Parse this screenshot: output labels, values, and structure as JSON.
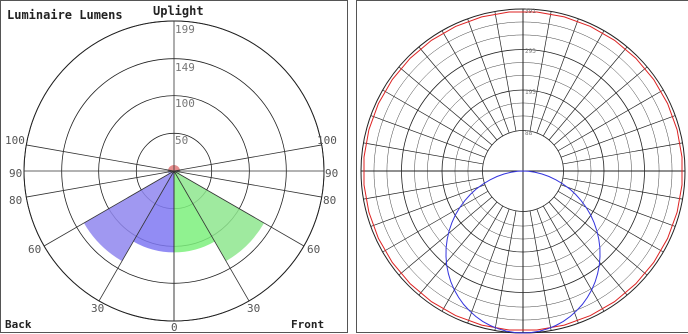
{
  "chart_data": [
    {
      "type": "polar-lumens",
      "title": "Luminaire Lumens",
      "top_label": "Uplight",
      "bottom_left_label": "Back",
      "bottom_right_label": "Front",
      "ring_values": [
        "50",
        "100",
        "149",
        "199"
      ],
      "angle_labels": {
        "left": [
          "100",
          "90",
          "80",
          "60",
          "30"
        ],
        "center_bottom": "0",
        "right": [
          "100",
          "90",
          "80",
          "60",
          "30"
        ]
      },
      "max_value": 199,
      "zones": [
        {
          "side": "back",
          "from_deg": 30,
          "to_deg": 60,
          "value": 138,
          "color": "#8f86ee"
        },
        {
          "side": "back",
          "from_deg": 0,
          "to_deg": 30,
          "value": 108,
          "color": "#7f78f2"
        },
        {
          "side": "back",
          "from_deg": 60,
          "to_deg": 80,
          "value": 8,
          "color": "#9aa0ff"
        },
        {
          "side": "front",
          "from_deg": 0,
          "to_deg": 30,
          "value": 108,
          "color": "#7df07d"
        },
        {
          "side": "front",
          "from_deg": 30,
          "to_deg": 60,
          "value": 138,
          "color": "#8ee68e"
        },
        {
          "side": "front",
          "from_deg": 60,
          "to_deg": 80,
          "value": 8,
          "color": "#9ef09e"
        }
      ],
      "uplight_value": 8,
      "uplight_color": "#e07070"
    },
    {
      "type": "polar-candela",
      "ring_values": [
        "88",
        "195",
        "293",
        "391"
      ],
      "max_value": 391,
      "distribution_color": "#3333dd",
      "envelope_color": "#dd2222"
    }
  ]
}
